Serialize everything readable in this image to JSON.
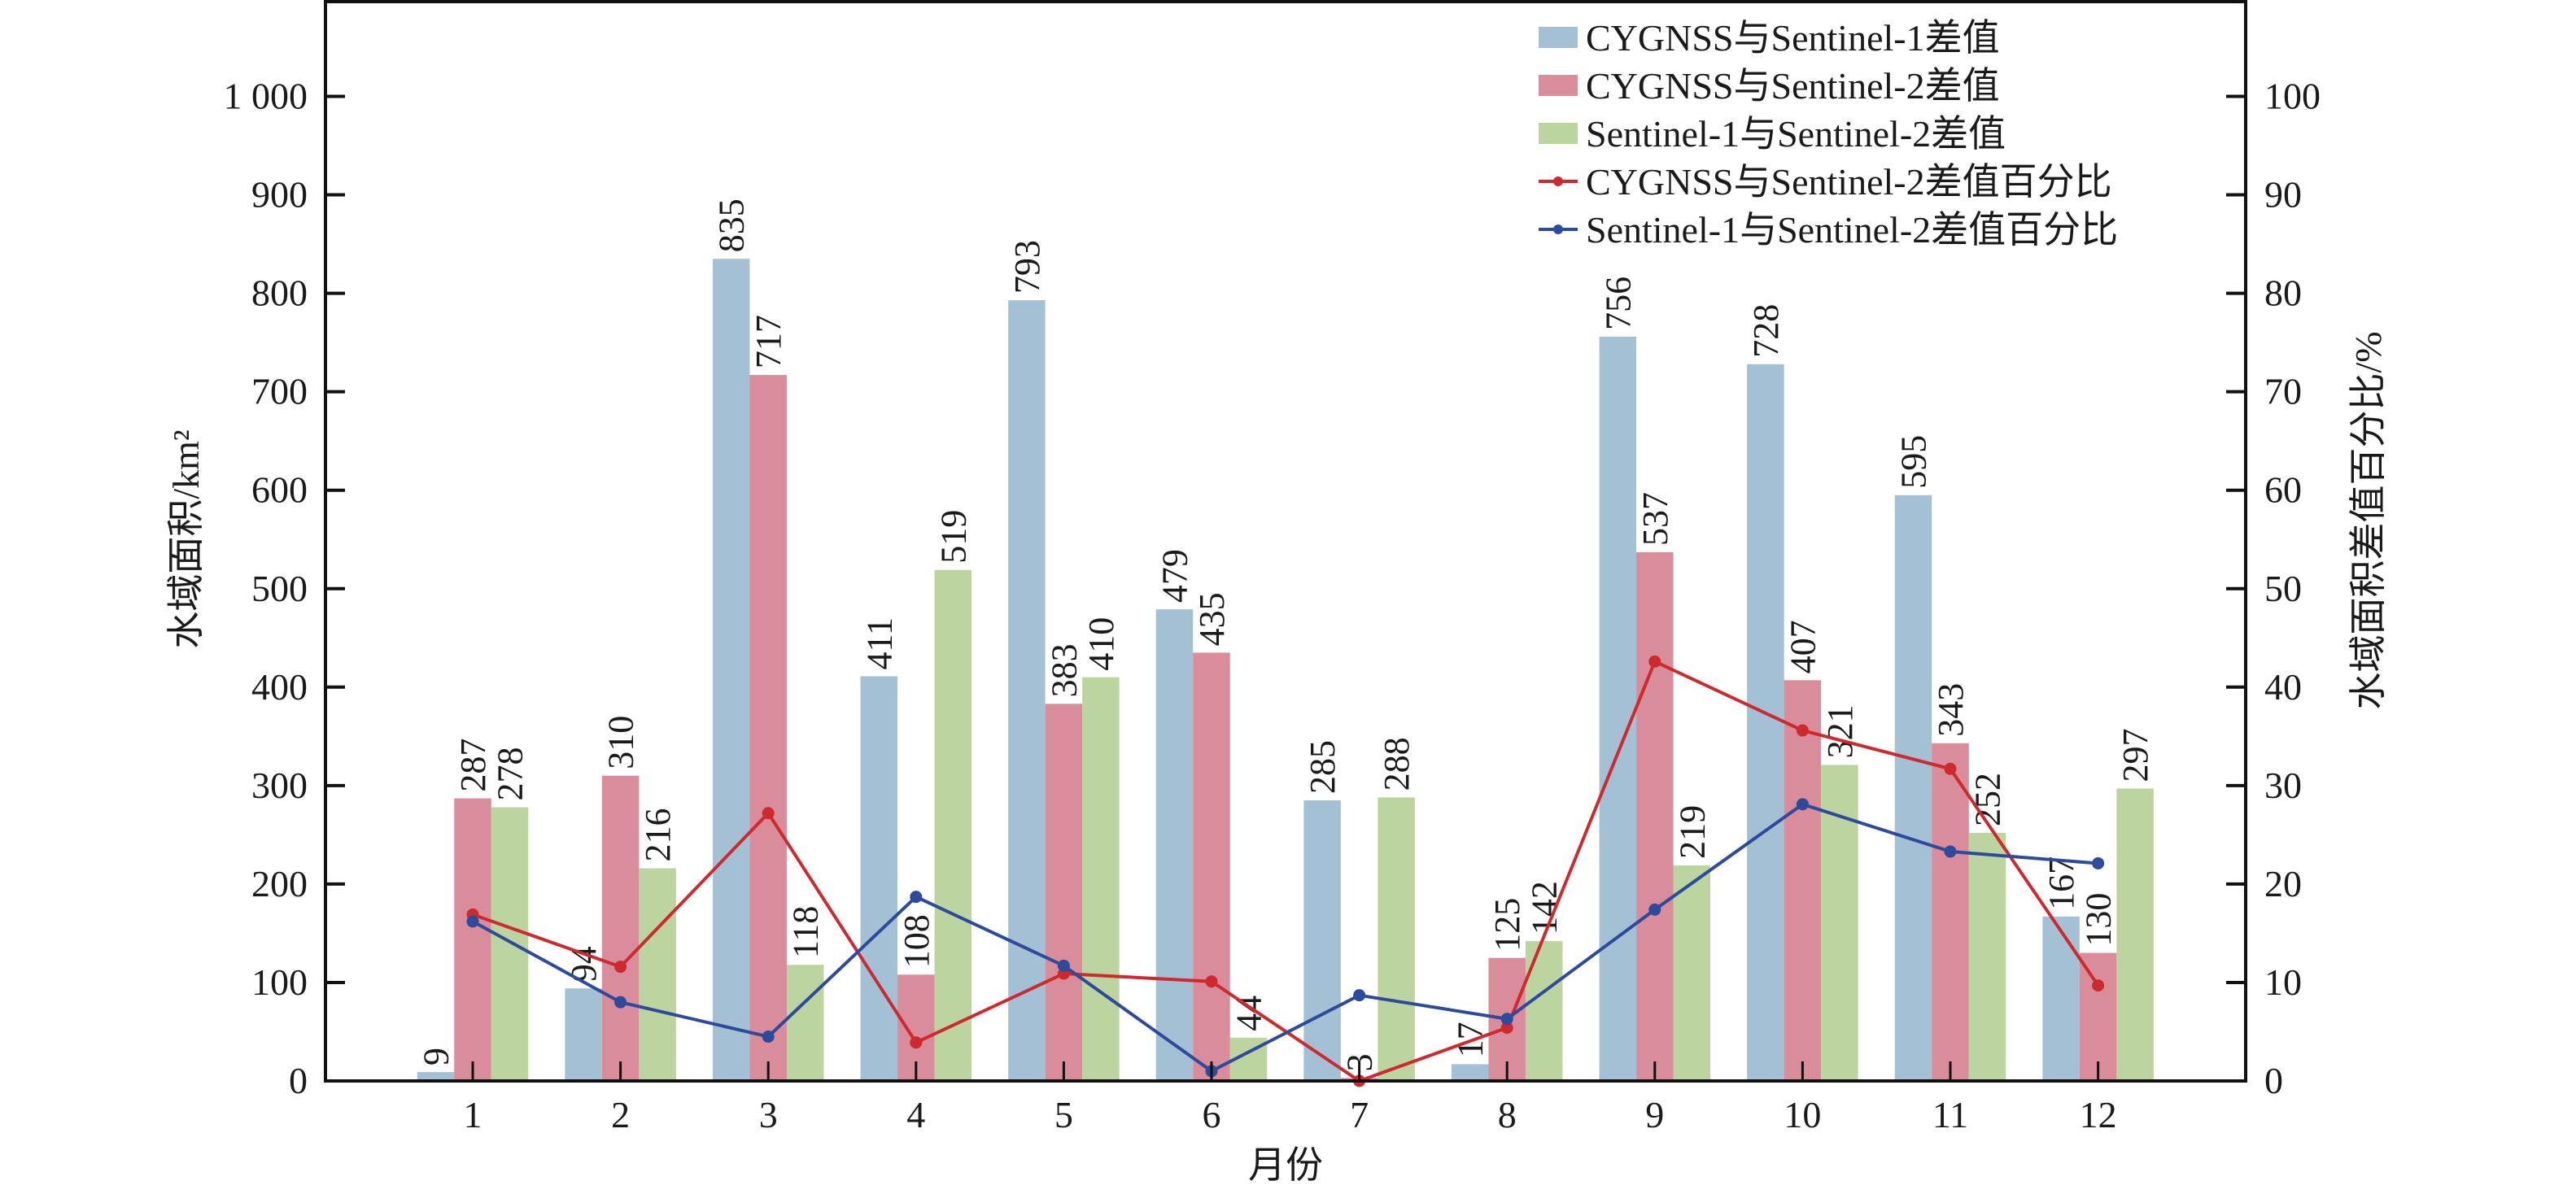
{
  "chart_data": {
    "type": "bar",
    "categories": [
      "1",
      "2",
      "3",
      "4",
      "5",
      "6",
      "7",
      "8",
      "9",
      "10",
      "11",
      "12"
    ],
    "xlabel": "月份",
    "ylabel": "水域面积/km²",
    "ylabel_right": "水域面积差值百分比/%",
    "ylim": [
      0,
      1100
    ],
    "ylim_right": [
      0,
      110
    ],
    "yticks": [
      0,
      100,
      200,
      300,
      400,
      500,
      600,
      700,
      800,
      900,
      1000
    ],
    "ytick_labels": [
      "0",
      "100",
      "200",
      "300",
      "400",
      "500",
      "600",
      "700",
      "800",
      "900",
      "1 000"
    ],
    "yticks_right": [
      0,
      10,
      20,
      30,
      40,
      50,
      60,
      70,
      80,
      90,
      100
    ],
    "ytick_labels_right": [
      "0",
      "10",
      "20",
      "30",
      "40",
      "50",
      "60",
      "70",
      "80",
      "90",
      "100"
    ],
    "grid": false,
    "legend_position": "top-right",
    "series": [
      {
        "name": "CYGNSS与Sentinel-1差值",
        "type": "bar",
        "axis": "left",
        "color": "#a3c0d5",
        "values": [
          9,
          94,
          835,
          411,
          793,
          479,
          285,
          17,
          756,
          728,
          595,
          167
        ],
        "labels": [
          "9",
          "94",
          "835",
          "411",
          "793",
          "479",
          "285",
          "17",
          "756",
          "728",
          "595",
          "167"
        ]
      },
      {
        "name": "CYGNSS与Sentinel-2差值",
        "type": "bar",
        "axis": "left",
        "color": "#d98c9a",
        "values": [
          287,
          310,
          717,
          108,
          383,
          435,
          3,
          125,
          537,
          407,
          343,
          130
        ],
        "labels": [
          "287",
          "310",
          "717",
          "108",
          "383",
          "435",
          "3",
          "125",
          "537",
          "407",
          "343",
          "130"
        ]
      },
      {
        "name": "Sentinel-1与Sentinel-2差值",
        "type": "bar",
        "axis": "left",
        "color": "#bcd4a0",
        "values": [
          278,
          216,
          118,
          519,
          410,
          44,
          288,
          142,
          219,
          321,
          252,
          297
        ],
        "labels": [
          "278",
          "216",
          "118",
          "519",
          "410",
          "44",
          "288",
          "142",
          "219",
          "321",
          "252",
          "297"
        ]
      },
      {
        "name": "CYGNSS与Sentinel-2差值百分比",
        "type": "line",
        "axis": "right",
        "color": "#cc2a2e",
        "values": [
          16.9,
          11.6,
          27.2,
          3.9,
          10.9,
          10.1,
          0.0,
          5.4,
          42.6,
          35.6,
          31.7,
          9.7
        ]
      },
      {
        "name": "Sentinel-1与Sentinel-2差值百分比",
        "type": "line",
        "axis": "right",
        "color": "#2e4a9a",
        "values": [
          16.2,
          8.0,
          4.5,
          18.7,
          11.7,
          1.0,
          8.7,
          6.3,
          17.4,
          28.1,
          23.3,
          22.1
        ]
      }
    ]
  }
}
